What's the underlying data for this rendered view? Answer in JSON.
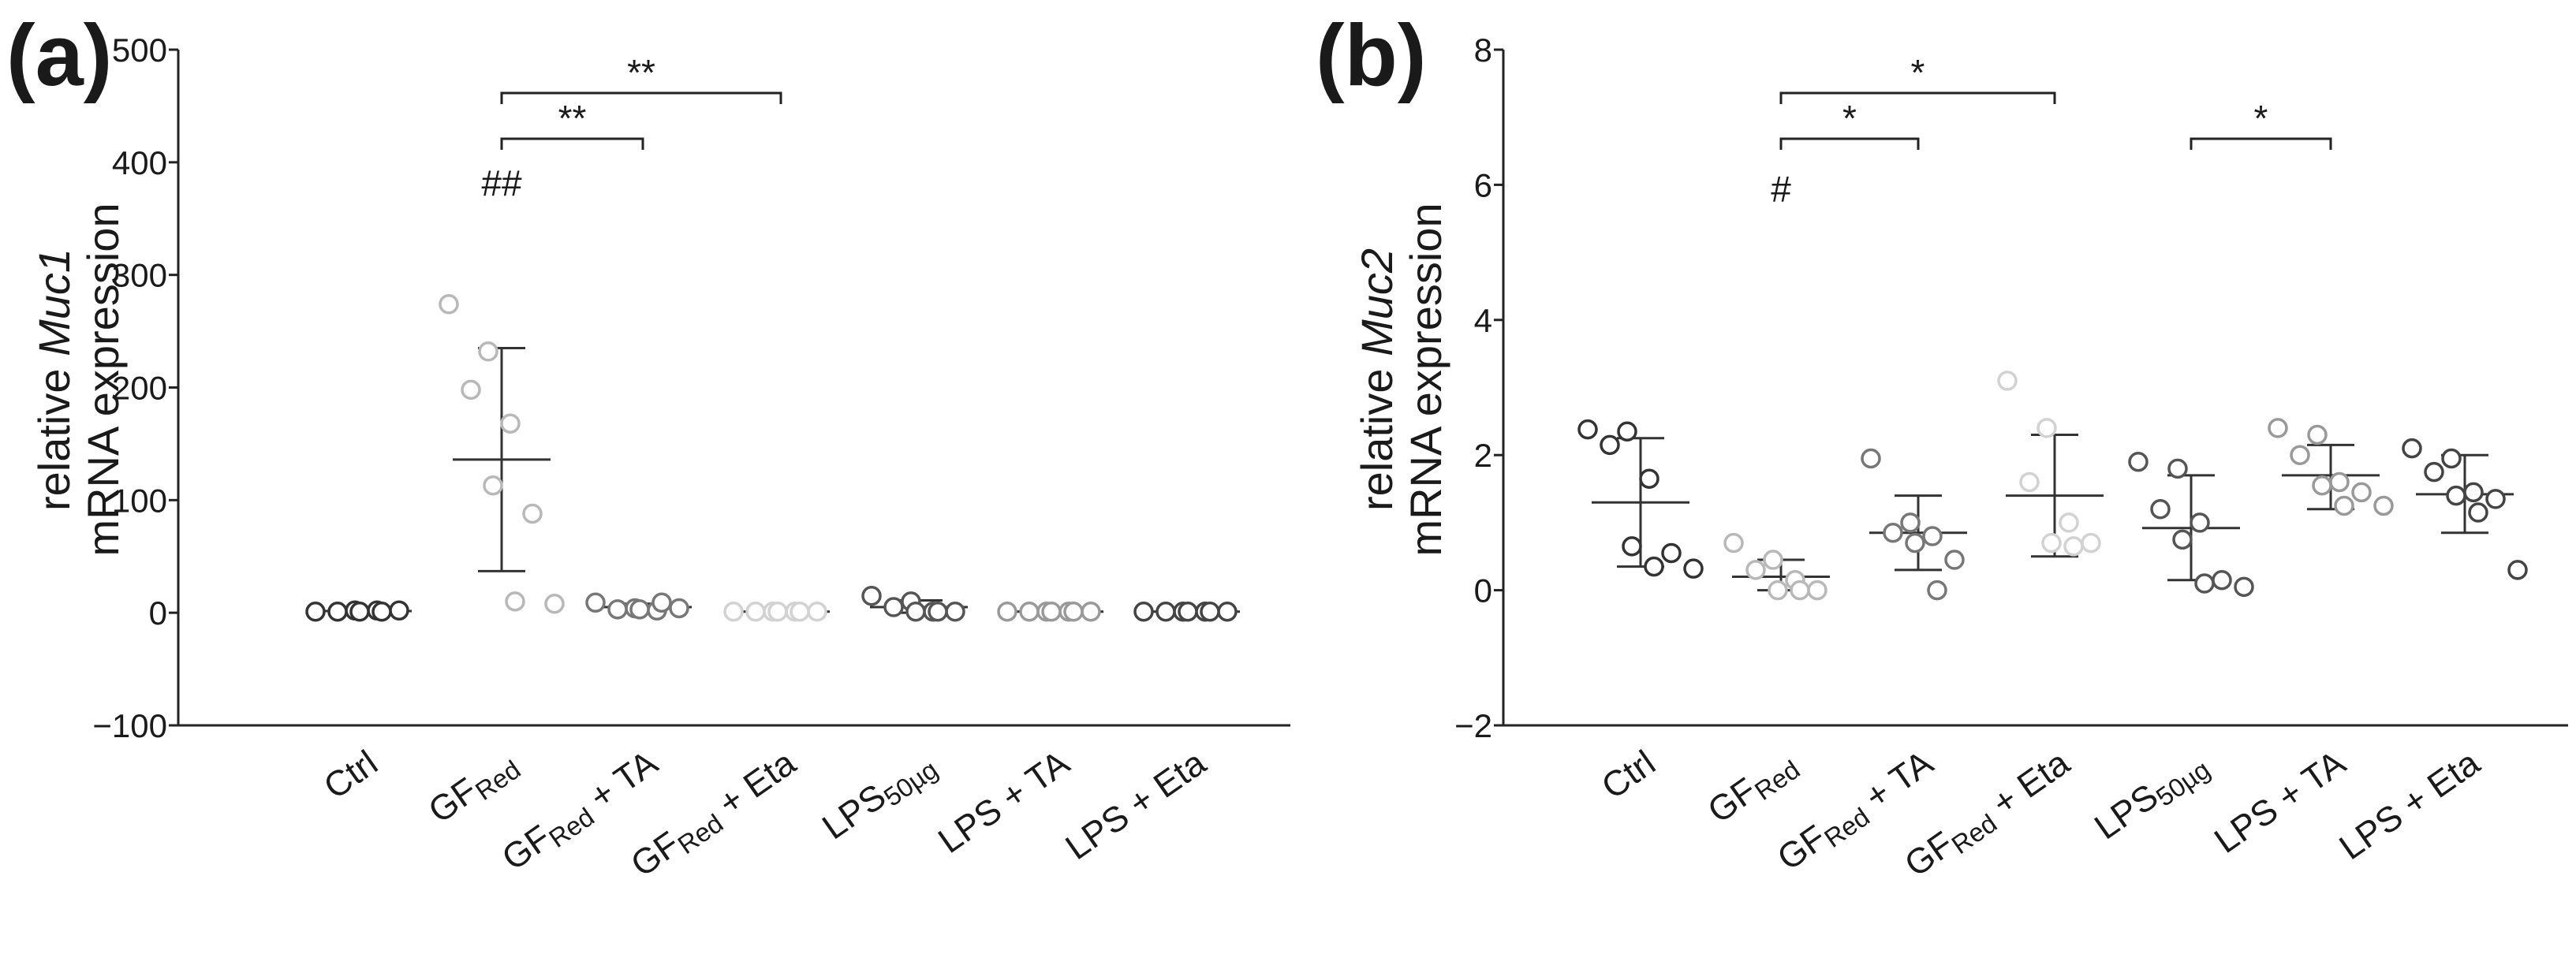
{
  "chart_data": [
    {
      "panel": "(a)",
      "type": "scatter",
      "ylabel_line1_prefix": "relative ",
      "ylabel_gene": "Muc1",
      "ylabel_line2": "mRNA expression",
      "ylim": [
        -100,
        500
      ],
      "yticks": [
        -100,
        0,
        100,
        200,
        300,
        400,
        500
      ],
      "ytick_labels": [
        "−100",
        "0",
        "100",
        "200",
        "300",
        "400",
        "500"
      ],
      "categories": [
        {
          "main": "Ctrl",
          "sub": "",
          "suffix": ""
        },
        {
          "main": "GF",
          "sub": "Red",
          "suffix": ""
        },
        {
          "main": "GF",
          "sub": "Red",
          "suffix": " + TA"
        },
        {
          "main": "GF",
          "sub": "Red",
          "suffix": " + Eta"
        },
        {
          "main": "LPS",
          "sub": "50µg",
          "suffix": ""
        },
        {
          "main": "LPS + TA",
          "sub": "",
          "suffix": ""
        },
        {
          "main": "LPS + Eta",
          "sub": "",
          "suffix": ""
        }
      ],
      "series": [
        {
          "category": "Ctrl",
          "color": "#333333",
          "points": [
            1,
            2,
            1,
            2,
            1,
            2,
            1
          ],
          "mean": 1.5,
          "sd_lower": 0,
          "sd_upper": 3
        },
        {
          "category": "GFRed",
          "color": "#b8b8b8",
          "points": [
            274,
            232,
            198,
            168,
            113,
            88,
            10,
            8
          ],
          "mean": 136,
          "sd_lower": 37,
          "sd_upper": 235
        },
        {
          "category": "GFRed + TA",
          "color": "#777777",
          "points": [
            9,
            4,
            3,
            2,
            3,
            4,
            9
          ],
          "mean": 5,
          "sd_lower": 2,
          "sd_upper": 8
        },
        {
          "category": "GFRed + Eta",
          "color": "#d2d2d2",
          "points": [
            1,
            1,
            1,
            1,
            1,
            1,
            1
          ],
          "mean": 1,
          "sd_lower": 0,
          "sd_upper": 2
        },
        {
          "category": "LPS50µg",
          "color": "#555555",
          "points": [
            15,
            10,
            5,
            1,
            1,
            1,
            1
          ],
          "mean": 5,
          "sd_lower": 0,
          "sd_upper": 11
        },
        {
          "category": "LPS + TA",
          "color": "#999999",
          "points": [
            1,
            1,
            1,
            1,
            1,
            1,
            1
          ],
          "mean": 1,
          "sd_lower": 0,
          "sd_upper": 2
        },
        {
          "category": "LPS + Eta",
          "color": "#444444",
          "points": [
            1,
            1,
            1,
            1,
            1,
            1,
            1
          ],
          "mean": 1,
          "sd_lower": 0,
          "sd_upper": 2
        }
      ],
      "significance": [
        {
          "from": 1,
          "to": 2,
          "label": "**"
        },
        {
          "from": 1,
          "to": 3,
          "label": "**"
        }
      ],
      "annotations": [
        {
          "category": 1,
          "label": "##",
          "y": 370
        }
      ]
    },
    {
      "panel": "(b)",
      "type": "scatter",
      "ylabel_line1_prefix": "relative ",
      "ylabel_gene": "Muc2",
      "ylabel_line2": "mRNA expression",
      "ylim": [
        -2,
        8
      ],
      "yticks": [
        -2,
        0,
        2,
        4,
        6,
        8
      ],
      "ytick_labels": [
        "−2",
        "0",
        "2",
        "4",
        "6",
        "8"
      ],
      "categories": [
        {
          "main": "Ctrl",
          "sub": "",
          "suffix": ""
        },
        {
          "main": "GF",
          "sub": "Red",
          "suffix": ""
        },
        {
          "main": "GF",
          "sub": "Red",
          "suffix": " + TA"
        },
        {
          "main": "GF",
          "sub": "Red",
          "suffix": " + Eta"
        },
        {
          "main": "LPS",
          "sub": "50µg",
          "suffix": ""
        },
        {
          "main": "LPS + TA",
          "sub": "",
          "suffix": ""
        },
        {
          "main": "LPS + Eta",
          "sub": "",
          "suffix": ""
        }
      ],
      "series": [
        {
          "category": "Ctrl",
          "color": "#333333",
          "points": [
            2.38,
            2.35,
            2.15,
            1.65,
            0.65,
            0.55,
            0.35,
            0.32
          ],
          "mean": 1.3,
          "sd_lower": 0.35,
          "sd_upper": 2.25
        },
        {
          "category": "GFRed",
          "color": "#b8b8b8",
          "points": [
            0.7,
            0.45,
            0.3,
            0.15,
            0.0,
            0.0,
            0.0
          ],
          "mean": 0.2,
          "sd_lower": 0.0,
          "sd_upper": 0.45
        },
        {
          "category": "GFRed + TA",
          "color": "#777777",
          "points": [
            1.95,
            1.0,
            0.85,
            0.8,
            0.7,
            0.45,
            0.0
          ],
          "mean": 0.85,
          "sd_lower": 0.3,
          "sd_upper": 1.4
        },
        {
          "category": "GFRed + Eta",
          "color": "#d2d2d2",
          "points": [
            3.1,
            2.4,
            1.6,
            1.0,
            0.7,
            0.7,
            0.65
          ],
          "mean": 1.4,
          "sd_lower": 0.5,
          "sd_upper": 2.3
        },
        {
          "category": "LPS50µg",
          "color": "#555555",
          "points": [
            1.9,
            1.8,
            1.2,
            1.0,
            0.75,
            0.15,
            0.1,
            0.05
          ],
          "mean": 0.92,
          "sd_lower": 0.15,
          "sd_upper": 1.7
        },
        {
          "category": "LPS + TA",
          "color": "#999999",
          "points": [
            2.4,
            2.3,
            2.0,
            1.6,
            1.55,
            1.45,
            1.25,
            1.25
          ],
          "mean": 1.7,
          "sd_lower": 1.2,
          "sd_upper": 2.15
        },
        {
          "category": "LPS + Eta",
          "color": "#444444",
          "points": [
            2.1,
            1.95,
            1.75,
            1.45,
            1.4,
            1.35,
            1.15,
            0.3
          ],
          "mean": 1.42,
          "sd_lower": 0.85,
          "sd_upper": 2.0
        }
      ],
      "significance": [
        {
          "from": 1,
          "to": 2,
          "label": "*"
        },
        {
          "from": 1,
          "to": 3,
          "label": "*"
        },
        {
          "from": 4,
          "to": 5,
          "label": "*"
        }
      ],
      "annotations": [
        {
          "category": 1,
          "label": "#",
          "y": 5.75
        }
      ]
    }
  ]
}
